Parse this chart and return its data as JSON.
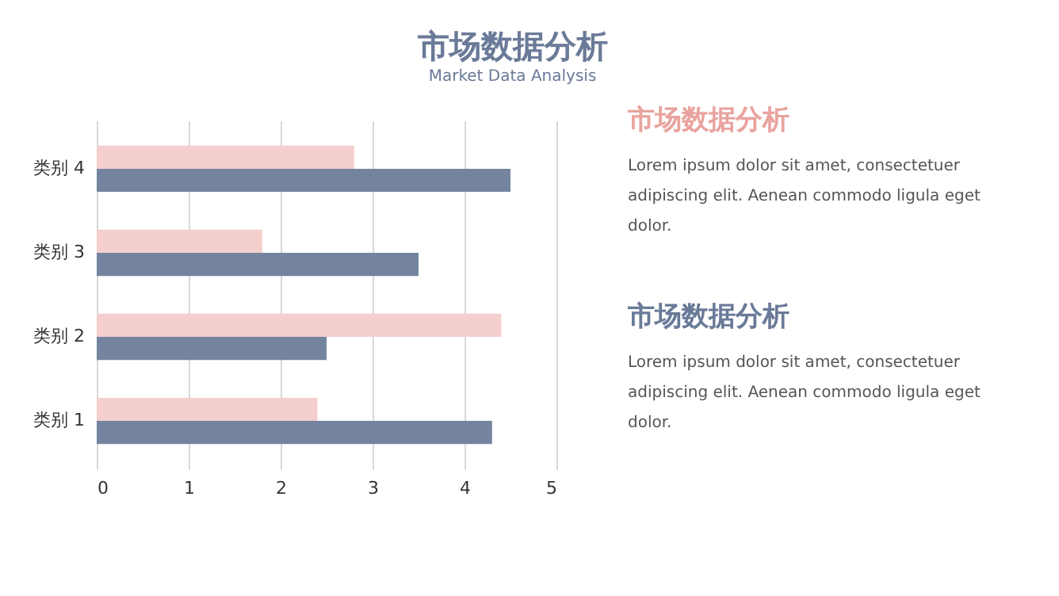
{
  "chart_data": [
    {
      "type": "bar",
      "title": "市场数据分析",
      "subtitle": "Market Data Analysis",
      "orientation": "horizontal",
      "categories": [
        "类别 4",
        "类别 3",
        "类别 2",
        "类别 1"
      ],
      "series": [
        {
          "color": "#f4cfcd",
          "values": [
            2.8,
            1.8,
            4.4,
            2.4
          ]
        },
        {
          "color": "#74849f",
          "values": [
            4.5,
            3.5,
            2.5,
            4.3
          ]
        }
      ],
      "xlim": [
        0,
        5
      ],
      "xticks": [
        0,
        1,
        2,
        3,
        4,
        5
      ],
      "grid": "x",
      "legend": false
    },
    {
      "type": "other",
      "title": "市场数据分析",
      "color": "#e9a39e",
      "annotations": [
        "Lorem ipsum dolor sit amet, consectetuer adipiscing elit. Aenean commodo ligula eget dolor."
      ]
    },
    {
      "type": "other",
      "title": "市场数据分析",
      "color": "#6a7a98",
      "annotations": [
        "Lorem ipsum dolor sit amet, consectetuer adipiscing elit. Aenean commodo ligula eget dolor."
      ]
    }
  ]
}
